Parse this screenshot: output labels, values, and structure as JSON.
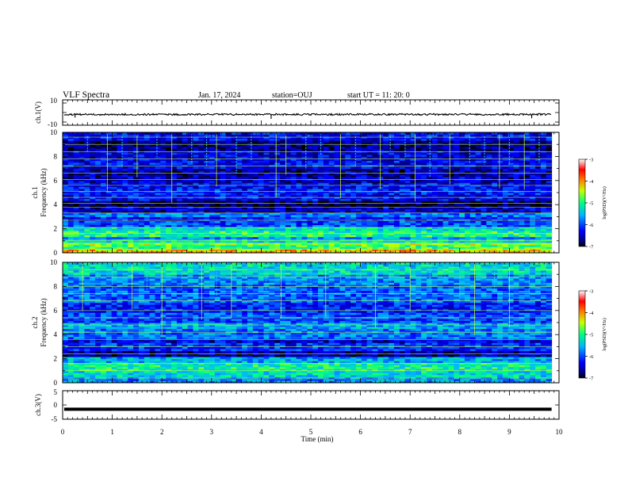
{
  "header": {
    "title": "VLF Spectra",
    "date": "Jan. 17, 2024",
    "station": "station=OUJ",
    "start_ut": "start UT =  11: 20: 0"
  },
  "chart_data": [
    {
      "type": "line",
      "ylabel": "ch.1(V)",
      "ylim": [
        -10,
        10
      ],
      "ytick_labels": [
        "10",
        "-10"
      ],
      "x": {
        "label": "Time (min)",
        "range": [
          0,
          10
        ]
      },
      "series": [
        {
          "values": [
            -1.5,
            -1.5,
            -1.6,
            -1.4,
            -1.5
          ]
        }
      ],
      "spikes": [
        {
          "x": 0.25,
          "y": -4
        },
        {
          "x": 4.2,
          "y": -5
        },
        {
          "x": 9.45,
          "y": -4.5
        }
      ],
      "data_end_min": 9.85
    },
    {
      "type": "heatmap",
      "ylabel": [
        "ch.1",
        "Frequency (kHz)"
      ],
      "ylim": [
        0,
        10
      ],
      "ytick_labels": [
        "0",
        "2",
        "4",
        "6",
        "8",
        "10"
      ],
      "xlim": [
        0,
        10
      ],
      "data_end_min": 9.85,
      "colorbar": {
        "label": "log(PSD)(V²/Hz)",
        "range": [
          -7,
          -3
        ],
        "tick_labels": [
          "-3",
          "-4",
          "-5",
          "-6",
          "-7"
        ]
      },
      "bands": [
        {
          "f0": 0.0,
          "f1": 0.35,
          "v": -4.2
        },
        {
          "f0": 0.35,
          "f1": 0.6,
          "v": -4.9
        },
        {
          "f0": 0.6,
          "f1": 0.85,
          "v": -4.6
        },
        {
          "f0": 0.85,
          "f1": 1.2,
          "v": -5.3
        },
        {
          "f0": 1.2,
          "f1": 1.4,
          "v": -5.7
        },
        {
          "f0": 1.4,
          "f1": 1.8,
          "v": -5.0
        },
        {
          "f0": 1.8,
          "f1": 2.2,
          "v": -5.3
        },
        {
          "f0": 2.2,
          "f1": 2.6,
          "v": -6.0
        },
        {
          "f0": 2.6,
          "f1": 3.0,
          "v": -6.2
        },
        {
          "f0": 3.0,
          "f1": 3.3,
          "v": -5.8
        },
        {
          "f0": 3.3,
          "f1": 3.9,
          "v": -6.5
        },
        {
          "f0": 3.9,
          "f1": 4.4,
          "v": -6.9
        },
        {
          "f0": 4.4,
          "f1": 4.9,
          "v": -6.3
        },
        {
          "f0": 4.9,
          "f1": 5.4,
          "v": -6.2
        },
        {
          "f0": 5.4,
          "f1": 5.8,
          "v": -6.3
        },
        {
          "f0": 5.8,
          "f1": 6.3,
          "v": -6.5
        },
        {
          "f0": 6.3,
          "f1": 7.0,
          "v": -6.6
        },
        {
          "f0": 7.0,
          "f1": 7.6,
          "v": -6.3
        },
        {
          "f0": 7.6,
          "f1": 8.5,
          "v": -6.4
        },
        {
          "f0": 8.5,
          "f1": 9.3,
          "v": -6.7
        },
        {
          "f0": 9.3,
          "f1": 10.0,
          "v": -6.3
        }
      ],
      "lines_khz": [
        0.3,
        0.8,
        1.0,
        1.6,
        2.1,
        2.7,
        3.3,
        3.8,
        4.1,
        4.6,
        5.1,
        5.6,
        6.1,
        6.6,
        7.2,
        7.8,
        8.4,
        9.0,
        9.6
      ],
      "spikes_min": [
        0.9,
        1.5,
        2.2,
        3.1,
        4.3,
        4.5,
        5.6,
        6.4,
        7.1,
        7.8,
        8.8,
        9.3
      ],
      "dashes_min": [
        0.5,
        1.2,
        1.9,
        2.6,
        2.9,
        3.5,
        3.8,
        4.9,
        5.2,
        5.9,
        6.6,
        6.9,
        7.4,
        8.2,
        8.5,
        9.0,
        9.6
      ]
    },
    {
      "type": "heatmap",
      "ylabel": [
        "ch.2",
        "Frequency (kHz)"
      ],
      "ylim": [
        0,
        10
      ],
      "ytick_labels": [
        "0",
        "2",
        "4",
        "6",
        "8",
        "10"
      ],
      "xlim": [
        0,
        10
      ],
      "data_end_min": 9.85,
      "colorbar": {
        "label": "log(PSD)(V²/Hz)",
        "range": [
          -7,
          -3
        ],
        "tick_labels": [
          "-3",
          "-4",
          "-5",
          "-6",
          "-7"
        ]
      },
      "bands": [
        {
          "f0": 0.0,
          "f1": 0.5,
          "v": -5.7
        },
        {
          "f0": 0.5,
          "f1": 1.0,
          "v": -5.3
        },
        {
          "f0": 1.0,
          "f1": 1.6,
          "v": -5.1
        },
        {
          "f0": 1.6,
          "f1": 2.2,
          "v": -5.6
        },
        {
          "f0": 2.2,
          "f1": 2.6,
          "v": -6.6
        },
        {
          "f0": 2.6,
          "f1": 3.3,
          "v": -6.1
        },
        {
          "f0": 3.3,
          "f1": 3.7,
          "v": -6.4
        },
        {
          "f0": 3.7,
          "f1": 4.5,
          "v": -5.8
        },
        {
          "f0": 4.5,
          "f1": 5.0,
          "v": -5.6
        },
        {
          "f0": 5.0,
          "f1": 5.8,
          "v": -6.0
        },
        {
          "f0": 5.8,
          "f1": 6.6,
          "v": -6.2
        },
        {
          "f0": 6.6,
          "f1": 7.4,
          "v": -5.9
        },
        {
          "f0": 7.4,
          "f1": 8.2,
          "v": -5.9
        },
        {
          "f0": 8.2,
          "f1": 9.0,
          "v": -5.7
        },
        {
          "f0": 9.0,
          "f1": 10.0,
          "v": -5.3
        }
      ],
      "lines_khz": [
        0.4,
        1.0,
        1.6,
        2.4,
        3.0,
        3.6,
        4.2,
        4.8,
        5.4,
        6.0,
        6.8,
        7.4,
        8.0,
        8.8,
        9.4
      ],
      "spikes_min": [
        0.4,
        1.4,
        2.0,
        2.8,
        3.4,
        4.4,
        5.3,
        6.3,
        7.0,
        8.3,
        9.0
      ],
      "dashes_min": [
        0.7,
        1.0,
        1.7,
        2.4,
        3.1,
        3.7,
        4.1,
        4.7,
        5.0,
        5.6,
        6.0,
        6.6,
        7.4,
        7.7,
        8.0,
        8.7,
        9.4,
        9.7
      ]
    },
    {
      "type": "line",
      "ylabel": "ch.3(V)",
      "ylim": [
        -5,
        5
      ],
      "ytick_labels": [
        "5",
        "0",
        "-5"
      ],
      "xlabel": "Time (min)",
      "xlim": [
        0,
        10
      ],
      "xtick_labels": [
        "0",
        "1",
        "2",
        "3",
        "4",
        "5",
        "6",
        "7",
        "8",
        "9",
        "10"
      ],
      "series": [
        {
          "values": [
            -1.5,
            -1.5,
            -1.5,
            -1.5,
            -1.5
          ]
        }
      ],
      "data_end_min": 9.85
    }
  ]
}
